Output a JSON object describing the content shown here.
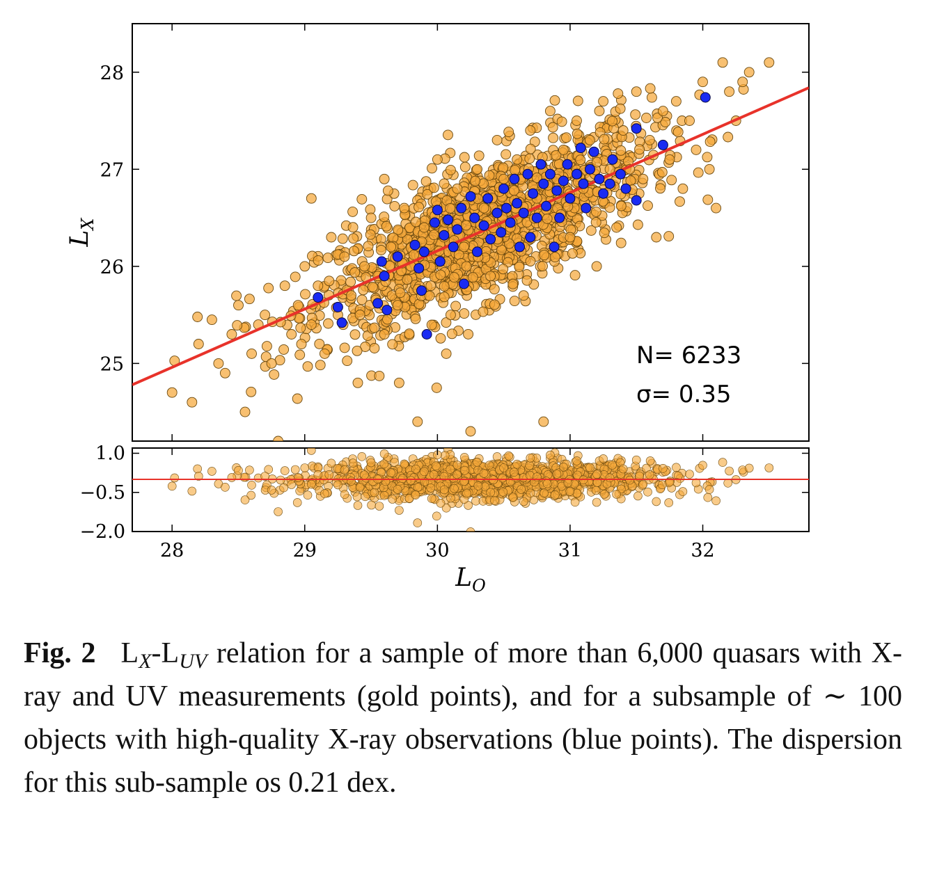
{
  "chart_data": [
    {
      "type": "scatter",
      "panel": "main",
      "xlabel": "L",
      "xlabel_sub": "O",
      "ylabel": "L",
      "ylabel_sub": "X",
      "xlim": [
        27.7,
        32.8
      ],
      "ylim": [
        24.2,
        28.5
      ],
      "xticks": [
        28,
        29,
        30,
        31,
        32
      ],
      "yticks": [
        25,
        26,
        27,
        28
      ],
      "xtick_labels": [
        "28",
        "29",
        "30",
        "31",
        "32"
      ],
      "ytick_labels": [
        "25",
        "26",
        "27",
        "28"
      ],
      "fit_line": {
        "slope": 0.6,
        "intercept": 8.16,
        "color": "#e8322a"
      },
      "series": [
        {
          "description": "gold points",
          "color": "#f5a83a",
          "count": 6233,
          "points": [
            [
              28.0,
              24.7
            ],
            [
              28.15,
              24.6
            ],
            [
              28.2,
              25.2
            ],
            [
              28.3,
              25.45
            ],
            [
              28.35,
              25.0
            ],
            [
              28.4,
              24.9
            ],
            [
              28.45,
              25.3
            ],
            [
              28.5,
              25.6
            ],
            [
              28.55,
              24.5
            ],
            [
              28.6,
              25.1
            ],
            [
              28.65,
              25.4
            ],
            [
              28.7,
              25.5
            ],
            [
              28.75,
              25.0
            ],
            [
              28.8,
              24.2
            ],
            [
              28.85,
              25.8
            ],
            [
              28.9,
              25.3
            ],
            [
              28.95,
              25.6
            ],
            [
              29.0,
              26.0
            ],
            [
              29.05,
              25.4
            ],
            [
              29.05,
              26.7
            ],
            [
              29.1,
              25.8
            ],
            [
              29.15,
              25.1
            ],
            [
              29.2,
              26.3
            ],
            [
              29.25,
              25.5
            ],
            [
              29.3,
              26.1
            ],
            [
              29.35,
              25.7
            ],
            [
              29.4,
              24.8
            ],
            [
              29.45,
              26.0
            ],
            [
              29.5,
              26.5
            ],
            [
              29.55,
              25.9
            ],
            [
              29.6,
              25.3
            ],
            [
              29.6,
              26.9
            ],
            [
              29.65,
              26.2
            ],
            [
              29.7,
              25.6
            ],
            [
              29.75,
              26.6
            ],
            [
              29.8,
              26.0
            ],
            [
              29.85,
              24.4
            ],
            [
              29.9,
              26.4
            ],
            [
              29.95,
              25.8
            ],
            [
              30.0,
              27.1
            ],
            [
              30.05,
              26.3
            ],
            [
              30.1,
              25.5
            ],
            [
              30.15,
              26.8
            ],
            [
              30.2,
              26.2
            ],
            [
              30.25,
              24.3
            ],
            [
              30.3,
              27.0
            ],
            [
              30.35,
              26.6
            ],
            [
              30.4,
              25.9
            ],
            [
              30.45,
              27.3
            ],
            [
              30.5,
              26.9
            ],
            [
              30.55,
              26.4
            ],
            [
              30.6,
              27.1
            ],
            [
              30.65,
              25.7
            ],
            [
              30.7,
              27.4
            ],
            [
              30.75,
              26.7
            ],
            [
              30.8,
              24.4
            ],
            [
              30.85,
              27.6
            ],
            [
              30.9,
              26.9
            ],
            [
              30.95,
              27.2
            ],
            [
              31.0,
              26.3
            ],
            [
              31.05,
              27.5
            ],
            [
              31.1,
              26.8
            ],
            [
              31.15,
              27.3
            ],
            [
              31.2,
              26.0
            ],
            [
              31.25,
              27.7
            ],
            [
              31.3,
              27.0
            ],
            [
              31.35,
              26.4
            ],
            [
              31.4,
              27.4
            ],
            [
              31.45,
              27.0
            ],
            [
              31.5,
              27.8
            ],
            [
              31.55,
              26.9
            ],
            [
              31.6,
              27.3
            ],
            [
              31.65,
              26.3
            ],
            [
              31.7,
              27.6
            ],
            [
              31.75,
              27.1
            ],
            [
              31.8,
              27.7
            ],
            [
              31.85,
              26.8
            ],
            [
              31.9,
              27.5
            ],
            [
              31.95,
              27.2
            ],
            [
              32.0,
              27.9
            ],
            [
              32.05,
              27.0
            ],
            [
              32.1,
              26.6
            ],
            [
              32.15,
              28.1
            ],
            [
              32.2,
              27.8
            ],
            [
              32.25,
              27.5
            ],
            [
              32.3,
              27.9
            ],
            [
              32.35,
              28.0
            ],
            [
              32.5,
              28.1
            ]
          ]
        },
        {
          "description": "blue points",
          "color": "#1a2bf2",
          "points": [
            [
              29.1,
              25.68
            ],
            [
              29.25,
              25.58
            ],
            [
              29.28,
              25.42
            ],
            [
              29.55,
              25.62
            ],
            [
              29.58,
              26.05
            ],
            [
              29.6,
              25.9
            ],
            [
              29.62,
              25.55
            ],
            [
              29.7,
              26.1
            ],
            [
              29.83,
              26.22
            ],
            [
              29.86,
              25.98
            ],
            [
              29.88,
              25.75
            ],
            [
              29.9,
              26.15
            ],
            [
              29.92,
              25.3
            ],
            [
              29.98,
              26.45
            ],
            [
              30.0,
              26.58
            ],
            [
              30.02,
              26.05
            ],
            [
              30.05,
              26.32
            ],
            [
              30.08,
              26.48
            ],
            [
              30.12,
              26.2
            ],
            [
              30.15,
              26.38
            ],
            [
              30.18,
              26.6
            ],
            [
              30.2,
              25.82
            ],
            [
              30.25,
              26.72
            ],
            [
              30.28,
              26.5
            ],
            [
              30.3,
              26.15
            ],
            [
              30.35,
              26.42
            ],
            [
              30.38,
              26.7
            ],
            [
              30.4,
              26.28
            ],
            [
              30.45,
              26.55
            ],
            [
              30.48,
              26.35
            ],
            [
              30.5,
              26.8
            ],
            [
              30.52,
              26.6
            ],
            [
              30.55,
              26.45
            ],
            [
              30.58,
              26.9
            ],
            [
              30.6,
              26.65
            ],
            [
              30.62,
              26.2
            ],
            [
              30.65,
              26.55
            ],
            [
              30.68,
              26.95
            ],
            [
              30.7,
              26.3
            ],
            [
              30.72,
              26.75
            ],
            [
              30.75,
              26.5
            ],
            [
              30.78,
              27.05
            ],
            [
              30.8,
              26.85
            ],
            [
              30.82,
              26.62
            ],
            [
              30.85,
              26.95
            ],
            [
              30.88,
              26.2
            ],
            [
              30.9,
              26.78
            ],
            [
              30.92,
              26.5
            ],
            [
              30.95,
              26.88
            ],
            [
              30.98,
              27.05
            ],
            [
              31.0,
              26.7
            ],
            [
              31.05,
              26.95
            ],
            [
              31.08,
              27.22
            ],
            [
              31.1,
              26.85
            ],
            [
              31.12,
              26.6
            ],
            [
              31.15,
              27.0
            ],
            [
              31.18,
              27.18
            ],
            [
              31.22,
              26.9
            ],
            [
              31.25,
              26.75
            ],
            [
              31.3,
              26.85
            ],
            [
              31.32,
              27.1
            ],
            [
              31.38,
              26.95
            ],
            [
              31.42,
              26.8
            ],
            [
              31.5,
              27.42
            ],
            [
              31.5,
              26.68
            ],
            [
              31.7,
              27.25
            ],
            [
              32.02,
              27.74
            ]
          ]
        }
      ],
      "annotations": [
        "N= 6233",
        "σ= 0.35"
      ]
    },
    {
      "type": "scatter",
      "panel": "residuals",
      "xlim": [
        27.7,
        32.8
      ],
      "ylim": [
        -2.0,
        1.2
      ],
      "yticks": [
        1.0,
        -0.5,
        -2.0
      ],
      "ytick_labels": [
        "1.0",
        "−0.5",
        "−2.0"
      ],
      "reference_line": {
        "y": 0,
        "color": "#e8322a"
      },
      "series": [
        {
          "description": "gold points",
          "color": "#f5a83a"
        }
      ]
    }
  ],
  "caption": {
    "label": "Fig. 2",
    "lx_main": "L",
    "lx_sub": "X",
    "luv_main": "-L",
    "luv_sub": "UV",
    "text": " relation for a sample of more than 6,000 quasars with X-ray and UV measurements (gold points), and for a subsample of ∼ 100 objects with high-quality X-ray observations (blue points). The dispersion for this sub-sample os 0.21 dex."
  }
}
